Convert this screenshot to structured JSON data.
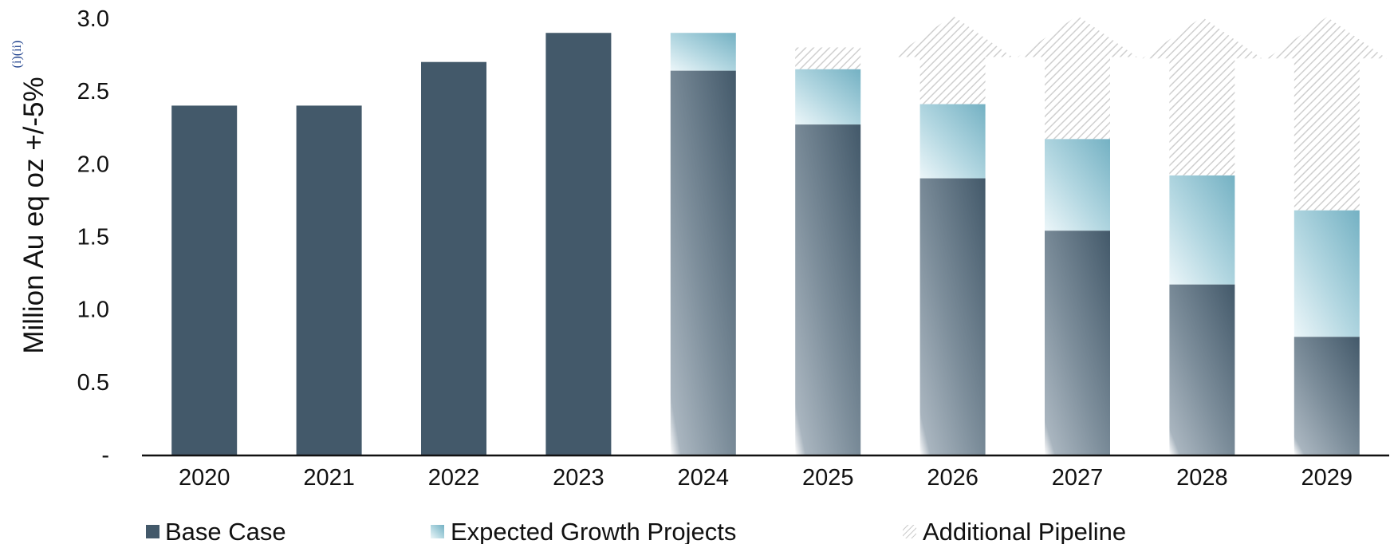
{
  "chart_data": {
    "type": "bar",
    "stacked": true,
    "categories": [
      "2020",
      "2021",
      "2022",
      "2023",
      "2024",
      "2025",
      "2026",
      "2027",
      "2028",
      "2029"
    ],
    "series": [
      {
        "name": "Base Case",
        "values": [
          2.4,
          2.4,
          2.7,
          2.9,
          2.64,
          2.27,
          1.9,
          1.54,
          1.17,
          0.81
        ]
      },
      {
        "name": "Expected Growth Projects",
        "values": [
          0,
          0,
          0,
          0,
          0.26,
          0.38,
          0.51,
          0.63,
          0.75,
          0.87
        ]
      },
      {
        "name": "Additional Pipeline",
        "values": [
          0,
          0,
          0,
          0,
          0,
          0.15,
          0.39,
          0.63,
          0.87,
          1.11
        ]
      }
    ],
    "pipeline_open_ended": [
      false,
      false,
      false,
      false,
      false,
      false,
      true,
      true,
      true,
      true
    ],
    "ylabel": "Million Au eq oz +/-5%",
    "ylabel_footnote": "(i)(ii)",
    "ylim": [
      0,
      3.0
    ],
    "yticks": [
      0,
      0.5,
      1.0,
      1.5,
      2.0,
      2.5,
      3.0
    ],
    "ytick_labels": [
      "-",
      "0.5",
      "1.0",
      "1.5",
      "2.0",
      "2.5",
      "3.0"
    ],
    "grid": false,
    "legend_position": "bottom",
    "colors": {
      "base_case": "#43596a",
      "base_case_light": "#93a3b0",
      "growth": "#79b5c6",
      "growth_light": "#daeef3",
      "pipeline_hatch": "#d6d6d6",
      "axis": "#111111"
    }
  }
}
